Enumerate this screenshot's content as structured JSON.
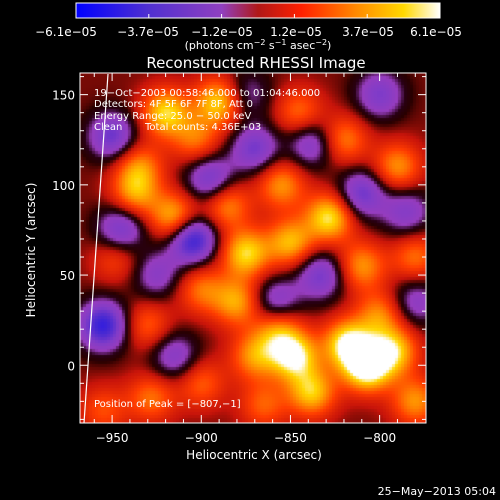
{
  "chart_data": {
    "type": "heatmap",
    "title": "Reconstructed RHESSI Image",
    "xlabel": "Heliocentric X (arcsec)",
    "ylabel": "Heliocentric Y (arcsec)",
    "x_range": [
      -968,
      -774
    ],
    "y_range": [
      -32,
      162
    ],
    "x_ticks": [
      -950,
      -900,
      -850,
      -800
    ],
    "x_tick_labels": [
      "−950",
      "−900",
      "−850",
      "−800"
    ],
    "y_ticks": [
      0,
      50,
      100,
      150
    ],
    "y_tick_labels": [
      "0",
      "50",
      "100",
      "150"
    ],
    "colorbar": {
      "range": [
        -6.1e-05,
        6.1e-05
      ],
      "tick_labels": [
        "−6.1e−05",
        "−3.7e−05",
        "−1.2e−05",
        "1.2e−05",
        "3.7e−05",
        "6.1e−05"
      ],
      "units_main": "(photons cm",
      "units_exp1": "−2",
      "units_mid": " s",
      "units_exp2": "−1",
      "units_end": " asec",
      "units_exp3": "−2",
      "units_close": ")",
      "colors": [
        "#0000ff",
        "#6f3fcf",
        "#9040d0",
        "#c02020",
        "#ff2000",
        "#ff8000",
        "#ffd000",
        "#ffffff"
      ]
    },
    "annotations": {
      "time_range": "19−Oct−2003 00:58:46.000 to 01:04:46.000",
      "detectors": "Detectors: 4F 5F 6F 7F 8F, Att 0",
      "energy": "Energy Range: 25.0 − 50.0 keV",
      "algorithm": "Clean",
      "counts": "Total counts: 4.36E+03",
      "peak": "Position of Peak = [−807,−1]"
    },
    "footer_date": "25−May−2013 05:04",
    "sources": [
      {
        "x": -807,
        "y": -1,
        "v": 1.0
      },
      {
        "x": -818,
        "y": 12,
        "v": 0.85
      },
      {
        "x": -848,
        "y": 5,
        "v": 0.85
      },
      {
        "x": -838,
        "y": -15,
        "v": 0.7
      },
      {
        "x": -792,
        "y": 8,
        "v": 0.7
      },
      {
        "x": -870,
        "y": 5,
        "v": 0.55
      },
      {
        "x": -880,
        "y": 35,
        "v": 0.6
      },
      {
        "x": -857,
        "y": 20,
        "v": 0.55
      },
      {
        "x": -800,
        "y": 28,
        "v": 0.5
      },
      {
        "x": -780,
        "y": -20,
        "v": 0.55
      },
      {
        "x": -865,
        "y": -22,
        "v": 0.4
      },
      {
        "x": -920,
        "y": 140,
        "v": 0.75
      },
      {
        "x": -890,
        "y": 146,
        "v": 0.75
      },
      {
        "x": -903,
        "y": 125,
        "v": 0.45
      },
      {
        "x": -935,
        "y": 110,
        "v": 0.5
      },
      {
        "x": -937,
        "y": 95,
        "v": 0.55
      },
      {
        "x": -915,
        "y": 82,
        "v": 0.7
      },
      {
        "x": -886,
        "y": 89,
        "v": 0.55
      },
      {
        "x": -875,
        "y": 62,
        "v": 0.75
      },
      {
        "x": -850,
        "y": 68,
        "v": 0.65
      },
      {
        "x": -828,
        "y": 82,
        "v": 0.8
      },
      {
        "x": -855,
        "y": 100,
        "v": 0.55
      },
      {
        "x": -820,
        "y": 125,
        "v": 0.5
      },
      {
        "x": -790,
        "y": 110,
        "v": 0.55
      },
      {
        "x": -810,
        "y": 55,
        "v": 0.55
      },
      {
        "x": -900,
        "y": 42,
        "v": 0.45
      },
      {
        "x": -930,
        "y": 22,
        "v": 0.4
      },
      {
        "x": -948,
        "y": 60,
        "v": 0.35
      },
      {
        "x": -928,
        "y": -18,
        "v": 0.45
      },
      {
        "x": -900,
        "y": -10,
        "v": 0.4
      },
      {
        "x": -955,
        "y": -25,
        "v": 0.35
      },
      {
        "x": -845,
        "y": 140,
        "v": 0.45
      },
      {
        "x": -780,
        "y": 60,
        "v": 0.45
      },
      {
        "x": -955,
        "y": 22,
        "v": -0.85
      },
      {
        "x": -945,
        "y": 75,
        "v": -0.6
      },
      {
        "x": -950,
        "y": 127,
        "v": -0.6
      },
      {
        "x": -905,
        "y": 70,
        "v": -0.9
      },
      {
        "x": -895,
        "y": 103,
        "v": -0.6
      },
      {
        "x": -870,
        "y": 120,
        "v": -0.55
      },
      {
        "x": -838,
        "y": 123,
        "v": -0.5
      },
      {
        "x": -810,
        "y": 95,
        "v": -0.6
      },
      {
        "x": -833,
        "y": 50,
        "v": -0.55
      },
      {
        "x": -858,
        "y": 35,
        "v": -0.5
      },
      {
        "x": -915,
        "y": 5,
        "v": -0.45
      },
      {
        "x": -800,
        "y": 150,
        "v": -0.5
      },
      {
        "x": -785,
        "y": 85,
        "v": -0.45
      },
      {
        "x": -780,
        "y": 35,
        "v": -0.4
      },
      {
        "x": -925,
        "y": 50,
        "v": -0.4
      },
      {
        "x": -875,
        "y": 150,
        "v": -0.35
      }
    ]
  }
}
